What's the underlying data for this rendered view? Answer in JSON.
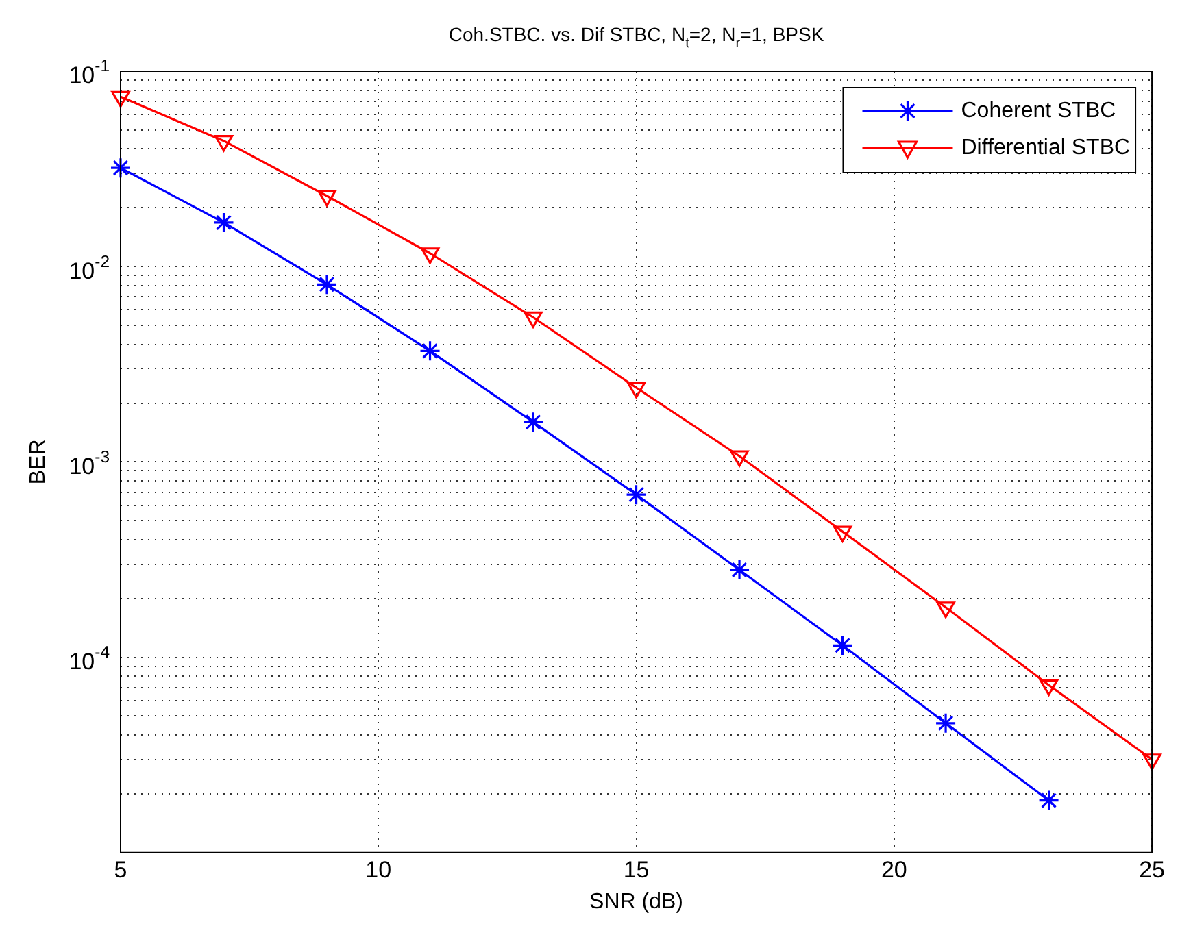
{
  "chart_data": {
    "type": "line",
    "title": "Coh.STBC. vs. Dif STBC, N$_{t}$=2, N$_{r}$=1, BPSK",
    "xlabel": "SNR (dB)",
    "ylabel": "BER",
    "x": [
      5,
      7,
      9,
      11,
      13,
      15,
      17,
      19,
      21,
      23,
      25
    ],
    "series": [
      {
        "name": "Coherent STBC",
        "color": "#0000ff",
        "marker": "cross",
        "values": [
          0.032,
          0.0168,
          0.0081,
          0.0037,
          0.0016,
          0.00068,
          0.00028,
          0.000115,
          4.6e-05,
          1.85e-05,
          null
        ]
      },
      {
        "name": "Differential STBC",
        "color": "#ff0000",
        "marker": "triangle-down",
        "values": [
          0.074,
          0.044,
          0.023,
          0.0117,
          0.0055,
          0.0024,
          0.00107,
          0.00044,
          0.00018,
          7.2e-05,
          3e-05
        ]
      }
    ],
    "log": "y",
    "xlim": [
      5,
      25
    ],
    "xticks": [
      5,
      10,
      15,
      20,
      25
    ],
    "ylim": [
      1e-05,
      0.1
    ],
    "yticks": [
      {
        "value": 1e-05,
        "label": null
      },
      {
        "value": 2e-05,
        "label": null
      },
      {
        "value": 3e-05,
        "label": null
      },
      {
        "value": 4e-05,
        "label": null
      },
      {
        "value": 5e-05,
        "label": null
      },
      {
        "value": 6e-05,
        "label": null
      },
      {
        "value": 7e-05,
        "label": null
      },
      {
        "value": 8e-05,
        "label": null
      },
      {
        "value": 9e-05,
        "label": null
      },
      {
        "value": 0.0001,
        "label": "10$^{-4}$"
      },
      {
        "value": 0.0002,
        "label": null
      },
      {
        "value": 0.0003,
        "label": null
      },
      {
        "value": 0.0004,
        "label": null
      },
      {
        "value": 0.0005,
        "label": null
      },
      {
        "value": 0.0006,
        "label": null
      },
      {
        "value": 0.0007,
        "label": null
      },
      {
        "value": 0.0008,
        "label": null
      },
      {
        "value": 0.0009,
        "label": null
      },
      {
        "value": 0.001,
        "label": "10$^{-3}$"
      },
      {
        "value": 0.002,
        "label": null
      },
      {
        "value": 0.003,
        "label": null
      },
      {
        "value": 0.004,
        "label": null
      },
      {
        "value": 0.005,
        "label": null
      },
      {
        "value": 0.006,
        "label": null
      },
      {
        "value": 0.007,
        "label": null
      },
      {
        "value": 0.008,
        "label": null
      },
      {
        "value": 0.009,
        "label": null
      },
      {
        "value": 0.01,
        "label": "10$^{-2}$"
      },
      {
        "value": 0.02,
        "label": null
      },
      {
        "value": 0.03,
        "label": null
      },
      {
        "value": 0.04,
        "label": null
      },
      {
        "value": 0.05,
        "label": null
      },
      {
        "value": 0.06,
        "label": null
      },
      {
        "value": 0.07,
        "label": null
      },
      {
        "value": 0.08,
        "label": null
      },
      {
        "value": 0.09,
        "label": null
      },
      {
        "value": 0.1,
        "label": "10$^{-1}$"
      }
    ],
    "grid": true,
    "legend": "top right",
    "line_style": "solid"
  }
}
